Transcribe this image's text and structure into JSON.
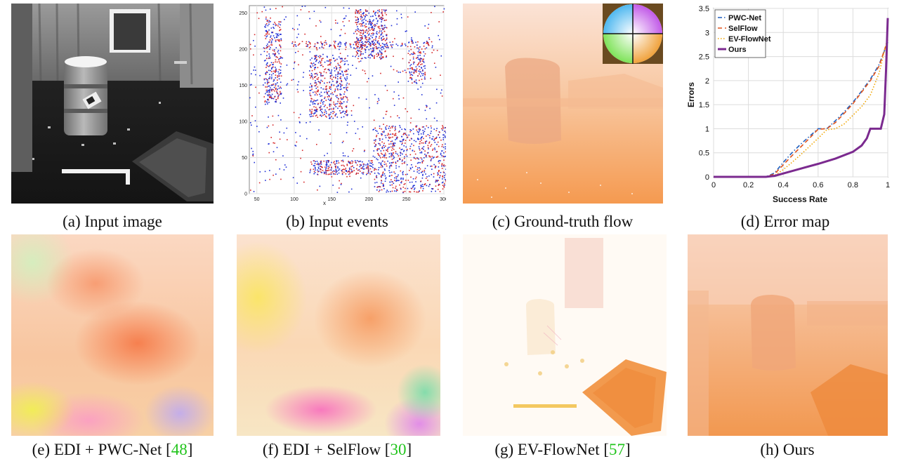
{
  "captions": {
    "a": "(a) Input image",
    "b": "(b) Input events",
    "c": "(c) Ground-truth flow",
    "d": "(d) Error map",
    "e": {
      "text": "(e) EDI + PWC-Net [",
      "ref": "48",
      "close": "]"
    },
    "f": {
      "text": "(f) EDI + SelFlow [",
      "ref": "30",
      "close": "]"
    },
    "g": {
      "text": "(g) EV-FlowNet [",
      "ref": "57",
      "close": "]"
    },
    "h": "(h) Ours"
  },
  "events_plot": {
    "xlabel": "x",
    "xticks": [
      50,
      100,
      150,
      200,
      250,
      300
    ],
    "yticks": [
      0,
      50,
      100,
      150,
      200,
      250
    ],
    "colors": {
      "positive": "#d62728",
      "negative": "#1f2fd6"
    }
  },
  "chart_data": {
    "type": "line",
    "title": "",
    "xlabel": "Success Rate",
    "ylabel": "Errors",
    "xlim": [
      0,
      1
    ],
    "ylim": [
      0,
      3.5
    ],
    "xticks": [
      "0",
      "0.2",
      "0.4",
      "0.6",
      "0.8",
      "1"
    ],
    "yticks": [
      "0",
      "0.5",
      "1",
      "1.5",
      "2",
      "2.5",
      "3",
      "3.5"
    ],
    "grid": true,
    "legend": "top-left",
    "series": [
      {
        "name": "PWC-Net",
        "color": "#1f5fbf",
        "style": "dashdot",
        "x": [
          0,
          0.3,
          0.35,
          0.4,
          0.45,
          0.5,
          0.55,
          0.6,
          0.65,
          0.7,
          0.75,
          0.8,
          0.85,
          0.9,
          0.95,
          1
        ],
        "y": [
          0,
          0,
          0.08,
          0.3,
          0.5,
          0.68,
          0.84,
          1.0,
          1.0,
          1.17,
          1.35,
          1.55,
          1.78,
          2.03,
          2.33,
          2.8
        ]
      },
      {
        "name": "SelFlow",
        "color": "#e0531b",
        "style": "dashed",
        "x": [
          0,
          0.3,
          0.35,
          0.4,
          0.45,
          0.5,
          0.55,
          0.6,
          0.65,
          0.7,
          0.75,
          0.8,
          0.85,
          0.9,
          0.95,
          1
        ],
        "y": [
          0,
          0,
          0.06,
          0.25,
          0.44,
          0.62,
          0.8,
          0.99,
          1.0,
          1.13,
          1.32,
          1.52,
          1.76,
          2.0,
          2.3,
          2.85
        ]
      },
      {
        "name": "EV-FlowNet",
        "color": "#f0a500",
        "style": "dotted",
        "x": [
          0,
          0.3,
          0.35,
          0.4,
          0.45,
          0.5,
          0.55,
          0.6,
          0.65,
          0.7,
          0.75,
          0.8,
          0.85,
          0.9,
          0.95,
          1
        ],
        "y": [
          0,
          0,
          0.03,
          0.15,
          0.3,
          0.46,
          0.63,
          0.8,
          0.98,
          1.0,
          1.1,
          1.28,
          1.46,
          1.7,
          2.15,
          2.9
        ]
      },
      {
        "name": "Ours",
        "color": "#7b2a8f",
        "style": "solid",
        "x": [
          0,
          0.3,
          0.35,
          0.4,
          0.5,
          0.6,
          0.7,
          0.8,
          0.85,
          0.88,
          0.9,
          0.93,
          0.96,
          0.98,
          0.99,
          1
        ],
        "y": [
          0,
          0,
          0.02,
          0.07,
          0.17,
          0.27,
          0.38,
          0.52,
          0.65,
          0.8,
          1.0,
          1.0,
          1.0,
          1.3,
          2.2,
          3.3
        ]
      }
    ]
  }
}
